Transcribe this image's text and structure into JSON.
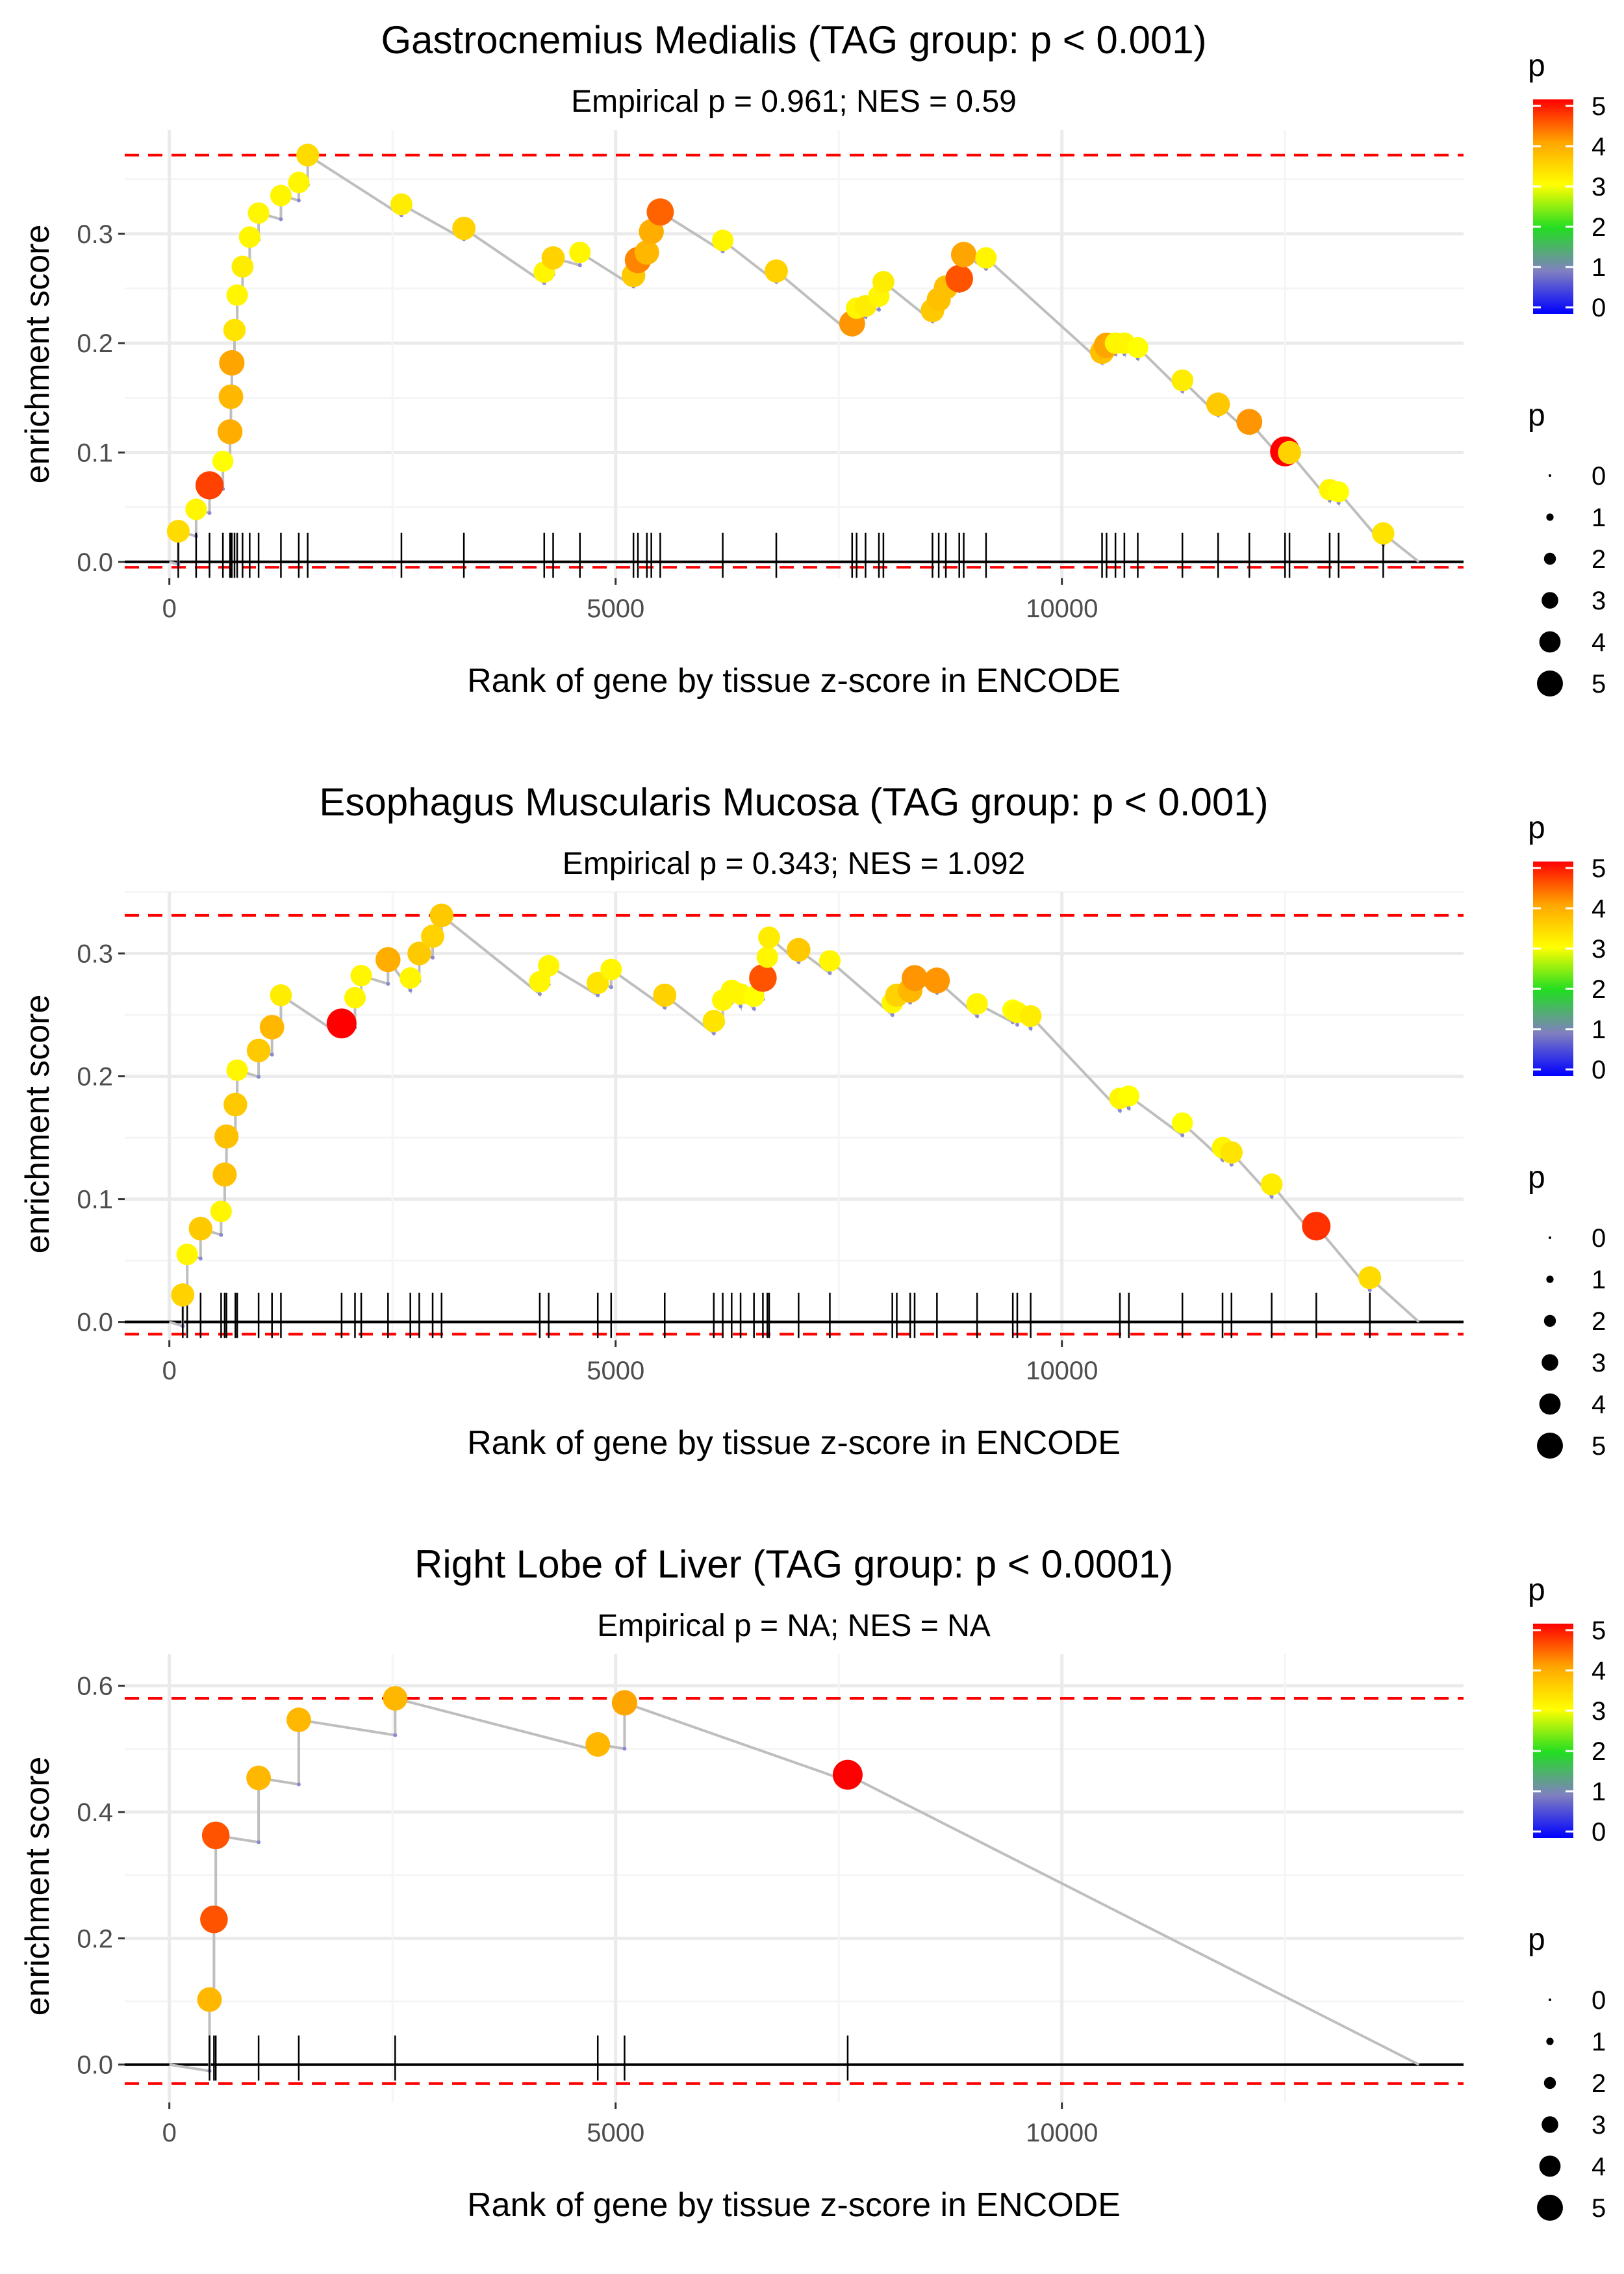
{
  "chart_data": [
    {
      "type": "scatter",
      "title": "Gastrocnemius Medialis (TAG group: p < 0.001)",
      "subtitle": "Empirical p = 0.961; NES = 0.59",
      "xlabel": "Rank of gene by tissue z-score in ENCODE",
      "ylabel": "enrichment score",
      "xlim": [
        -500,
        14500
      ],
      "ylim": [
        -0.015,
        0.395
      ],
      "xticks": [
        0,
        5000,
        10000
      ],
      "xtick_labels": [
        "0",
        "5000",
        "10000"
      ],
      "yticks": [
        0,
        0.1,
        0.2,
        0.3
      ],
      "ytick_labels": [
        "0.0",
        "0.1",
        "0.2",
        "0.3"
      ],
      "threshold_lines": [
        0.372,
        -0.005
      ],
      "n_genes": 14000,
      "points": [
        {
          "rank": 100,
          "es": 0.028,
          "p": 3.4
        },
        {
          "rank": 300,
          "es": 0.048,
          "p": 3.1
        },
        {
          "rank": 450,
          "es": 0.07,
          "p": 4.6
        },
        {
          "rank": 600,
          "es": 0.092,
          "p": 3.0
        },
        {
          "rank": 680,
          "es": 0.119,
          "p": 3.9
        },
        {
          "rank": 690,
          "es": 0.151,
          "p": 3.8
        },
        {
          "rank": 700,
          "es": 0.182,
          "p": 4.0
        },
        {
          "rank": 730,
          "es": 0.212,
          "p": 3.3
        },
        {
          "rank": 760,
          "es": 0.244,
          "p": 3.1
        },
        {
          "rank": 820,
          "es": 0.27,
          "p": 3.2
        },
        {
          "rank": 900,
          "es": 0.297,
          "p": 3.1
        },
        {
          "rank": 1000,
          "es": 0.319,
          "p": 3.1
        },
        {
          "rank": 1250,
          "es": 0.335,
          "p": 3.1
        },
        {
          "rank": 1450,
          "es": 0.347,
          "p": 3.1
        },
        {
          "rank": 1550,
          "es": 0.372,
          "p": 3.4
        },
        {
          "rank": 2600,
          "es": 0.327,
          "p": 3.2
        },
        {
          "rank": 3300,
          "es": 0.305,
          "p": 3.5
        },
        {
          "rank": 4200,
          "es": 0.265,
          "p": 3.1
        },
        {
          "rank": 4300,
          "es": 0.278,
          "p": 3.5
        },
        {
          "rank": 4600,
          "es": 0.283,
          "p": 3.1
        },
        {
          "rank": 5200,
          "es": 0.262,
          "p": 3.6
        },
        {
          "rank": 5250,
          "es": 0.276,
          "p": 4.2
        },
        {
          "rank": 5350,
          "es": 0.283,
          "p": 3.8
        },
        {
          "rank": 5400,
          "es": 0.302,
          "p": 3.9
        },
        {
          "rank": 5500,
          "es": 0.32,
          "p": 4.4
        },
        {
          "rank": 6200,
          "es": 0.294,
          "p": 3.1
        },
        {
          "rank": 6800,
          "es": 0.266,
          "p": 3.5
        },
        {
          "rank": 7650,
          "es": 0.218,
          "p": 4.1
        },
        {
          "rank": 7700,
          "es": 0.232,
          "p": 3.1
        },
        {
          "rank": 7800,
          "es": 0.234,
          "p": 3.2
        },
        {
          "rank": 7950,
          "es": 0.243,
          "p": 3.1
        },
        {
          "rank": 8000,
          "es": 0.256,
          "p": 3.2
        },
        {
          "rank": 8550,
          "es": 0.23,
          "p": 3.6
        },
        {
          "rank": 8620,
          "es": 0.24,
          "p": 3.7
        },
        {
          "rank": 8700,
          "es": 0.251,
          "p": 3.7
        },
        {
          "rank": 8850,
          "es": 0.259,
          "p": 4.5
        },
        {
          "rank": 8900,
          "es": 0.281,
          "p": 4.0
        },
        {
          "rank": 9150,
          "es": 0.278,
          "p": 3.1
        },
        {
          "rank": 10450,
          "es": 0.192,
          "p": 3.7
        },
        {
          "rank": 10500,
          "es": 0.198,
          "p": 4.0
        },
        {
          "rank": 10600,
          "es": 0.2,
          "p": 3.1
        },
        {
          "rank": 10700,
          "es": 0.2,
          "p": 3.1
        },
        {
          "rank": 10850,
          "es": 0.196,
          "p": 3.0
        },
        {
          "rank": 11350,
          "es": 0.166,
          "p": 3.2
        },
        {
          "rank": 11750,
          "es": 0.144,
          "p": 3.6
        },
        {
          "rank": 12100,
          "es": 0.128,
          "p": 4.1
        },
        {
          "rank": 12500,
          "es": 0.101,
          "p": 5.2
        },
        {
          "rank": 12550,
          "es": 0.1,
          "p": 3.5
        },
        {
          "rank": 13000,
          "es": 0.066,
          "p": 3.1
        },
        {
          "rank": 13100,
          "es": 0.064,
          "p": 3.0
        },
        {
          "rank": 13600,
          "es": 0.026,
          "p": 3.3
        }
      ]
    },
    {
      "type": "scatter",
      "title": "Esophagus Muscularis Mucosa (TAG group: p < 0.001)",
      "subtitle": "Empirical p = 0.343; NES = 1.092",
      "xlabel": "Rank of gene by tissue z-score in ENCODE",
      "ylabel": "enrichment score",
      "xlim": [
        -500,
        14500
      ],
      "ylim": [
        -0.015,
        0.35
      ],
      "xticks": [
        0,
        5000,
        10000
      ],
      "xtick_labels": [
        "0",
        "5000",
        "10000"
      ],
      "yticks": [
        0,
        0.1,
        0.2,
        0.3
      ],
      "ytick_labels": [
        "0.0",
        "0.1",
        "0.2",
        "0.3"
      ],
      "threshold_lines": [
        0.331,
        -0.01
      ],
      "n_genes": 14000,
      "points": [
        {
          "rank": 150,
          "es": 0.022,
          "p": 3.5
        },
        {
          "rank": 200,
          "es": 0.055,
          "p": 3.1
        },
        {
          "rank": 350,
          "es": 0.076,
          "p": 3.6
        },
        {
          "rank": 580,
          "es": 0.09,
          "p": 3.1
        },
        {
          "rank": 620,
          "es": 0.12,
          "p": 3.7
        },
        {
          "rank": 640,
          "es": 0.151,
          "p": 3.7
        },
        {
          "rank": 740,
          "es": 0.177,
          "p": 3.6
        },
        {
          "rank": 760,
          "es": 0.205,
          "p": 3.1
        },
        {
          "rank": 1000,
          "es": 0.221,
          "p": 3.6
        },
        {
          "rank": 1150,
          "es": 0.24,
          "p": 3.8
        },
        {
          "rank": 1250,
          "es": 0.266,
          "p": 3.2
        },
        {
          "rank": 1930,
          "es": 0.243,
          "p": 5.2
        },
        {
          "rank": 2080,
          "es": 0.264,
          "p": 3.1
        },
        {
          "rank": 2150,
          "es": 0.282,
          "p": 3.1
        },
        {
          "rank": 2450,
          "es": 0.295,
          "p": 3.9
        },
        {
          "rank": 2700,
          "es": 0.28,
          "p": 3.1
        },
        {
          "rank": 2800,
          "es": 0.3,
          "p": 3.6
        },
        {
          "rank": 2950,
          "es": 0.314,
          "p": 3.5
        },
        {
          "rank": 3050,
          "es": 0.331,
          "p": 3.6
        },
        {
          "rank": 4150,
          "es": 0.277,
          "p": 3.1
        },
        {
          "rank": 4250,
          "es": 0.29,
          "p": 3.1
        },
        {
          "rank": 4800,
          "es": 0.276,
          "p": 3.3
        },
        {
          "rank": 4950,
          "es": 0.287,
          "p": 3.1
        },
        {
          "rank": 5550,
          "es": 0.266,
          "p": 3.5
        },
        {
          "rank": 6100,
          "es": 0.245,
          "p": 3.3
        },
        {
          "rank": 6200,
          "es": 0.262,
          "p": 3.1
        },
        {
          "rank": 6300,
          "es": 0.27,
          "p": 3.1
        },
        {
          "rank": 6400,
          "es": 0.267,
          "p": 3.1
        },
        {
          "rank": 6550,
          "es": 0.265,
          "p": 3.0
        },
        {
          "rank": 6650,
          "es": 0.28,
          "p": 4.5
        },
        {
          "rank": 6700,
          "es": 0.297,
          "p": 3.1
        },
        {
          "rank": 6720,
          "es": 0.313,
          "p": 3.2
        },
        {
          "rank": 7050,
          "es": 0.303,
          "p": 3.6
        },
        {
          "rank": 7400,
          "es": 0.294,
          "p": 3.1
        },
        {
          "rank": 8100,
          "es": 0.26,
          "p": 3.1
        },
        {
          "rank": 8150,
          "es": 0.266,
          "p": 3.5
        },
        {
          "rank": 8300,
          "es": 0.27,
          "p": 3.8
        },
        {
          "rank": 8350,
          "es": 0.28,
          "p": 4.1
        },
        {
          "rank": 8600,
          "es": 0.278,
          "p": 4.1
        },
        {
          "rank": 9050,
          "es": 0.259,
          "p": 3.1
        },
        {
          "rank": 9450,
          "es": 0.254,
          "p": 3.0
        },
        {
          "rank": 9500,
          "es": 0.252,
          "p": 3.1
        },
        {
          "rank": 9650,
          "es": 0.249,
          "p": 3.2
        },
        {
          "rank": 10650,
          "es": 0.182,
          "p": 3.1
        },
        {
          "rank": 10750,
          "es": 0.184,
          "p": 3.0
        },
        {
          "rank": 11350,
          "es": 0.162,
          "p": 3.0
        },
        {
          "rank": 11800,
          "es": 0.142,
          "p": 3.1
        },
        {
          "rank": 11900,
          "es": 0.138,
          "p": 3.3
        },
        {
          "rank": 12350,
          "es": 0.112,
          "p": 3.2
        },
        {
          "rank": 12850,
          "es": 0.078,
          "p": 4.7
        },
        {
          "rank": 13450,
          "es": 0.036,
          "p": 3.4
        }
      ]
    },
    {
      "type": "scatter",
      "title": "Right Lobe of Liver (TAG group: p < 0.0001)",
      "subtitle": "Empirical p = NA; NES = NA",
      "xlabel": "Rank of gene by tissue z-score in ENCODE",
      "ylabel": "enrichment score",
      "xlim": [
        -500,
        14500
      ],
      "ylim": [
        -0.06,
        0.65
      ],
      "xticks": [
        0,
        5000,
        10000
      ],
      "xtick_labels": [
        "0",
        "5000",
        "10000"
      ],
      "yticks": [
        0,
        0.2,
        0.4,
        0.6
      ],
      "ytick_labels": [
        "0.0",
        "0.2",
        "0.4",
        "0.6"
      ],
      "threshold_lines": [
        0.58,
        -0.03
      ],
      "n_genes": 14000,
      "points": [
        {
          "rank": 450,
          "es": 0.103,
          "p": 3.8
        },
        {
          "rank": 500,
          "es": 0.23,
          "p": 4.5
        },
        {
          "rank": 520,
          "es": 0.363,
          "p": 4.5
        },
        {
          "rank": 1000,
          "es": 0.454,
          "p": 3.8
        },
        {
          "rank": 1450,
          "es": 0.546,
          "p": 3.8
        },
        {
          "rank": 2530,
          "es": 0.58,
          "p": 3.8
        },
        {
          "rank": 4800,
          "es": 0.507,
          "p": 3.8
        },
        {
          "rank": 5100,
          "es": 0.573,
          "p": 4.0
        },
        {
          "rank": 7600,
          "es": 0.459,
          "p": 5.2
        }
      ]
    }
  ],
  "legend": {
    "color_title": "p",
    "color_ticks": [
      "5",
      "4",
      "3",
      "2",
      "1",
      "0"
    ],
    "size_title": "p",
    "size_labels": [
      "0",
      "1",
      "2",
      "3",
      "4",
      "5"
    ]
  }
}
